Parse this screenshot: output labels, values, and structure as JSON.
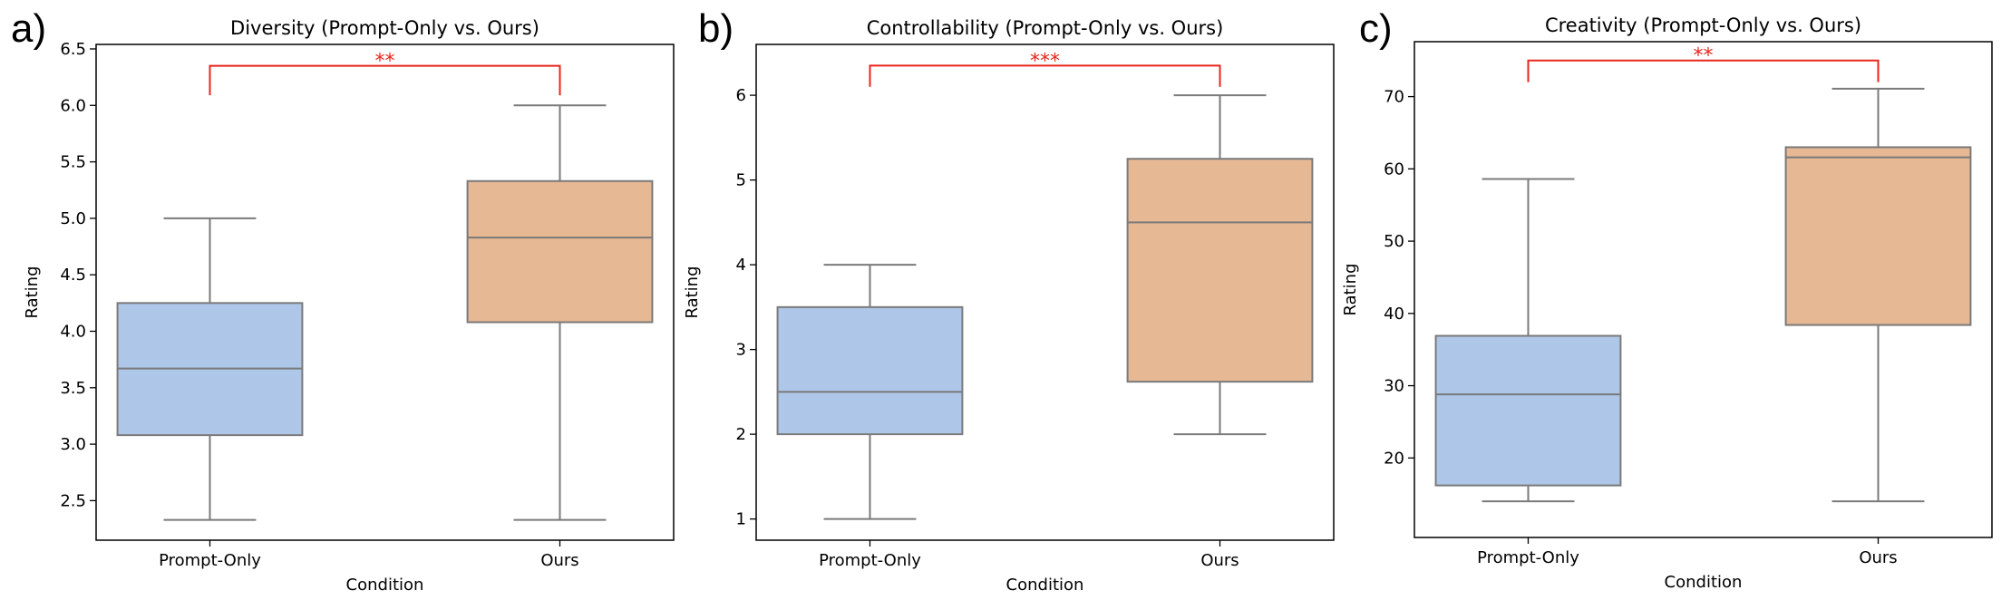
{
  "chart_data": [
    {
      "type": "box",
      "panel_label": "a)",
      "title": "Diversity (Prompt-Only vs. Ours)",
      "xlabel": "Condition",
      "ylabel": "Rating",
      "ylim": [
        2.15,
        6.54
      ],
      "yticks": [
        2.5,
        3.0,
        3.5,
        4.0,
        4.5,
        5.0,
        5.5,
        6.0,
        6.5
      ],
      "ytick_labels": [
        "2.5",
        "3.0",
        "3.5",
        "4.0",
        "4.5",
        "5.0",
        "5.5",
        "6.0",
        "6.5"
      ],
      "categories": [
        "Prompt-Only",
        "Ours"
      ],
      "boxes": [
        {
          "whislo": 2.33,
          "q1": 3.08,
          "med": 3.67,
          "q3": 4.25,
          "whishi": 5.0,
          "color": "#aec7e8"
        },
        {
          "whislo": 2.33,
          "q1": 4.08,
          "med": 4.83,
          "q3": 5.33,
          "whishi": 6.0,
          "color": "#e6b894"
        }
      ],
      "significance": {
        "label": "**",
        "y_bar": 6.35,
        "y_drop": 6.09,
        "color": "#e8251b"
      }
    },
    {
      "type": "box",
      "panel_label": "b)",
      "title": "Controllability (Prompt-Only vs. Ours)",
      "xlabel": "Condition",
      "ylabel": "Rating",
      "ylim": [
        0.75,
        6.6
      ],
      "yticks": [
        1,
        2,
        3,
        4,
        5,
        6
      ],
      "ytick_labels": [
        "1",
        "2",
        "3",
        "4",
        "5",
        "6"
      ],
      "categories": [
        "Prompt-Only",
        "Ours"
      ],
      "boxes": [
        {
          "whislo": 1.0,
          "q1": 2.0,
          "med": 2.5,
          "q3": 3.5,
          "whishi": 4.0,
          "color": "#aec7e8"
        },
        {
          "whislo": 2.0,
          "q1": 2.62,
          "med": 4.5,
          "q3": 5.25,
          "whishi": 6.0,
          "color": "#e6b894"
        }
      ],
      "significance": {
        "label": "***",
        "y_bar": 6.35,
        "y_drop": 6.1,
        "color": "#e8251b"
      }
    },
    {
      "type": "box",
      "panel_label": "c)",
      "title": "Creativity (Prompt-Only vs. Ours)",
      "xlabel": "Condition",
      "ylabel": "Rating",
      "ylim": [
        9.0,
        77.6
      ],
      "yticks": [
        20,
        30,
        40,
        50,
        60,
        70
      ],
      "ytick_labels": [
        "20",
        "30",
        "40",
        "50",
        "60",
        "70"
      ],
      "categories": [
        "Prompt-Only",
        "Ours"
      ],
      "boxes": [
        {
          "whislo": 14.0,
          "q1": 16.2,
          "med": 28.8,
          "q3": 36.9,
          "whishi": 58.6,
          "color": "#aec7e8"
        },
        {
          "whislo": 14.0,
          "q1": 38.4,
          "med": 61.6,
          "q3": 63.0,
          "whishi": 71.1,
          "color": "#e6b894"
        }
      ],
      "significance": {
        "label": "**",
        "y_bar": 75.0,
        "y_drop": 72.0,
        "color": "#e8251b"
      }
    }
  ]
}
